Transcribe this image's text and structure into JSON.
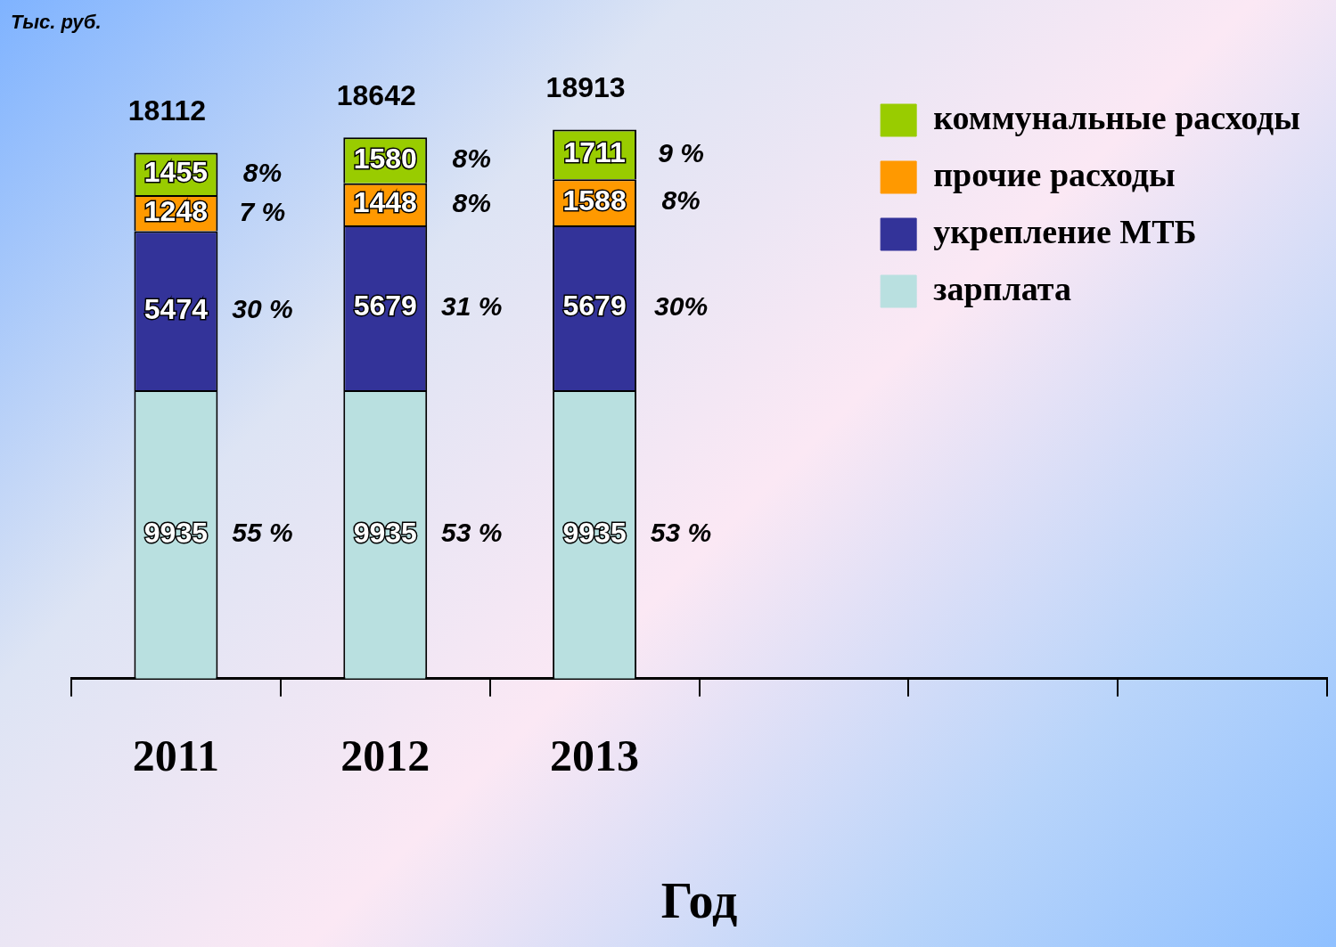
{
  "chart_data": {
    "type": "bar",
    "stacked": true,
    "ylabel": "Тыс. руб.",
    "xlabel": "Год",
    "categories": [
      "2011",
      "2012",
      "2013",
      null,
      null,
      null
    ],
    "series": [
      {
        "name": "зарплата",
        "color": "#b9e0e0",
        "values": [
          9935,
          9935,
          9935,
          null,
          null,
          null
        ]
      },
      {
        "name": "укрепление МТБ",
        "color": "#333399",
        "values": [
          5474,
          5679,
          5679,
          null,
          null,
          null
        ]
      },
      {
        "name": "прочие расходы",
        "color": "#ff9900",
        "values": [
          1248,
          1448,
          1588,
          null,
          null,
          null
        ]
      },
      {
        "name": "коммунальные расходы",
        "color": "#99cc00",
        "values": [
          1455,
          1580,
          1711,
          null,
          null,
          null
        ]
      }
    ],
    "annotations": [
      "55 %",
      "30 %",
      "7 %",
      "8%",
      "53 %",
      "31 %",
      "8%",
      "8%",
      "53 %",
      "30%",
      "8%",
      "9 %"
    ],
    "data_labels": true,
    "totals": [
      "18112",
      "18642",
      "18913"
    ],
    "legend": "top right",
    "grid": false,
    "tick_labels": "x"
  }
}
